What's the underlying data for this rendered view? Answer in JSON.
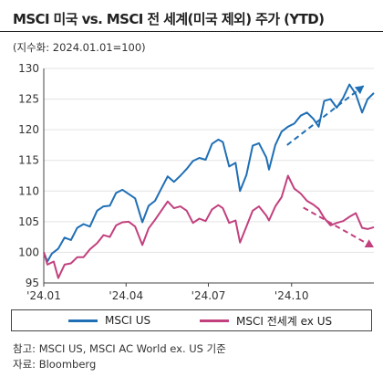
{
  "header": {
    "title": "MSCI 미국 vs. MSCI 전 세계(미국 제외) 주가 (YTD)",
    "unit_note": "(지수화: 2024.01.01=100)"
  },
  "footer": {
    "note": "참고: MSCI US, MSCI AC World ex. US 기준",
    "source": "자료: Bloomberg"
  },
  "chart_data": {
    "type": "line",
    "ylim": [
      95,
      130
    ],
    "yticks": [
      95,
      100,
      105,
      110,
      115,
      120,
      125,
      130
    ],
    "xlim": [
      "2024-01-01",
      "2024-12-31"
    ],
    "xticks": [
      {
        "label": "'24.01",
        "date": "2024-01-01"
      },
      {
        "label": "'24.04",
        "date": "2024-04-01"
      },
      {
        "label": "'24.07",
        "date": "2024-07-01"
      },
      {
        "label": "'24.10",
        "date": "2024-10-01"
      }
    ],
    "grid": true,
    "legend": "bottom",
    "series": [
      {
        "name": "MSCI US",
        "color": "#1f6fb5",
        "points": [
          [
            "2024-01-01",
            100.0
          ],
          [
            "2024-01-05",
            98.5
          ],
          [
            "2024-01-10",
            99.8
          ],
          [
            "2024-01-17",
            100.6
          ],
          [
            "2024-01-24",
            102.4
          ],
          [
            "2024-01-31",
            102.0
          ],
          [
            "2024-02-07",
            104.0
          ],
          [
            "2024-02-14",
            104.6
          ],
          [
            "2024-02-21",
            104.2
          ],
          [
            "2024-02-29",
            106.8
          ],
          [
            "2024-03-07",
            107.5
          ],
          [
            "2024-03-14",
            107.6
          ],
          [
            "2024-03-21",
            109.7
          ],
          [
            "2024-03-28",
            110.2
          ],
          [
            "2024-04-04",
            109.5
          ],
          [
            "2024-04-11",
            108.8
          ],
          [
            "2024-04-19",
            104.9
          ],
          [
            "2024-04-26",
            107.6
          ],
          [
            "2024-05-03",
            108.4
          ],
          [
            "2024-05-10",
            110.4
          ],
          [
            "2024-05-17",
            112.4
          ],
          [
            "2024-05-24",
            111.5
          ],
          [
            "2024-05-31",
            112.5
          ],
          [
            "2024-06-07",
            113.6
          ],
          [
            "2024-06-14",
            114.9
          ],
          [
            "2024-06-21",
            115.4
          ],
          [
            "2024-06-28",
            115.1
          ],
          [
            "2024-07-05",
            117.7
          ],
          [
            "2024-07-12",
            118.4
          ],
          [
            "2024-07-17",
            118.0
          ],
          [
            "2024-07-24",
            114.0
          ],
          [
            "2024-07-31",
            114.6
          ],
          [
            "2024-08-05",
            110.0
          ],
          [
            "2024-08-12",
            112.6
          ],
          [
            "2024-08-19",
            117.4
          ],
          [
            "2024-08-26",
            117.8
          ],
          [
            "2024-09-03",
            115.5
          ],
          [
            "2024-09-06",
            113.5
          ],
          [
            "2024-09-13",
            117.5
          ],
          [
            "2024-09-20",
            119.7
          ],
          [
            "2024-09-27",
            120.5
          ],
          [
            "2024-10-04",
            121.0
          ],
          [
            "2024-10-11",
            122.3
          ],
          [
            "2024-10-18",
            122.8
          ],
          [
            "2024-10-25",
            121.8
          ],
          [
            "2024-10-31",
            120.5
          ],
          [
            "2024-11-06",
            124.7
          ],
          [
            "2024-11-13",
            125.0
          ],
          [
            "2024-11-20",
            123.6
          ],
          [
            "2024-11-27",
            125.2
          ],
          [
            "2024-12-04",
            127.4
          ],
          [
            "2024-12-11",
            125.8
          ],
          [
            "2024-12-18",
            122.8
          ],
          [
            "2024-12-24",
            125.0
          ],
          [
            "2024-12-31",
            126.0
          ]
        ]
      },
      {
        "name": "MSCI 전세계 ex US",
        "color": "#c2407e",
        "points": [
          [
            "2024-01-01",
            100.0
          ],
          [
            "2024-01-05",
            98.0
          ],
          [
            "2024-01-12",
            98.5
          ],
          [
            "2024-01-17",
            95.8
          ],
          [
            "2024-01-24",
            98.0
          ],
          [
            "2024-01-31",
            98.2
          ],
          [
            "2024-02-07",
            99.2
          ],
          [
            "2024-02-14",
            99.2
          ],
          [
            "2024-02-21",
            100.5
          ],
          [
            "2024-02-29",
            101.5
          ],
          [
            "2024-03-07",
            102.8
          ],
          [
            "2024-03-14",
            102.5
          ],
          [
            "2024-03-21",
            104.4
          ],
          [
            "2024-03-28",
            104.9
          ],
          [
            "2024-04-04",
            105.0
          ],
          [
            "2024-04-11",
            104.2
          ],
          [
            "2024-04-19",
            101.2
          ],
          [
            "2024-04-26",
            103.9
          ],
          [
            "2024-05-03",
            105.3
          ],
          [
            "2024-05-10",
            106.8
          ],
          [
            "2024-05-17",
            108.3
          ],
          [
            "2024-05-24",
            107.2
          ],
          [
            "2024-05-31",
            107.5
          ],
          [
            "2024-06-07",
            106.8
          ],
          [
            "2024-06-14",
            104.8
          ],
          [
            "2024-06-21",
            105.5
          ],
          [
            "2024-06-28",
            105.1
          ],
          [
            "2024-07-05",
            107.0
          ],
          [
            "2024-07-12",
            107.7
          ],
          [
            "2024-07-17",
            107.2
          ],
          [
            "2024-07-24",
            104.8
          ],
          [
            "2024-07-31",
            105.2
          ],
          [
            "2024-08-05",
            101.6
          ],
          [
            "2024-08-12",
            104.2
          ],
          [
            "2024-08-19",
            106.8
          ],
          [
            "2024-08-26",
            107.5
          ],
          [
            "2024-09-03",
            106.0
          ],
          [
            "2024-09-06",
            105.2
          ],
          [
            "2024-09-13",
            107.5
          ],
          [
            "2024-09-20",
            109.0
          ],
          [
            "2024-09-27",
            112.5
          ],
          [
            "2024-10-04",
            110.4
          ],
          [
            "2024-10-11",
            109.6
          ],
          [
            "2024-10-18",
            108.4
          ],
          [
            "2024-10-25",
            107.8
          ],
          [
            "2024-10-31",
            107.1
          ],
          [
            "2024-11-06",
            105.6
          ],
          [
            "2024-11-13",
            104.4
          ],
          [
            "2024-11-20",
            104.8
          ],
          [
            "2024-11-27",
            105.1
          ],
          [
            "2024-12-04",
            105.8
          ],
          [
            "2024-12-11",
            106.4
          ],
          [
            "2024-12-18",
            104.0
          ],
          [
            "2024-12-24",
            103.8
          ],
          [
            "2024-12-31",
            104.1
          ]
        ]
      }
    ],
    "annotations": [
      {
        "type": "dashed-arrow",
        "color": "#1f6fb5",
        "from": [
          "2024-09-26",
          117.5
        ],
        "to": [
          "2024-12-20",
          127.2
        ]
      },
      {
        "type": "dashed-arrow",
        "color": "#c2407e",
        "from": [
          "2024-10-14",
          107.3
        ],
        "to": [
          "2024-12-31",
          100.8
        ]
      }
    ]
  }
}
